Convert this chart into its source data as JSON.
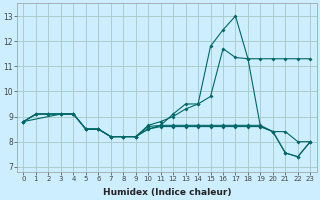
{
  "xlabel": "Humidex (Indice chaleur)",
  "background_color": "#cceeff",
  "grid_color": "#aacccc",
  "line_color": "#006666",
  "xlim": [
    -0.5,
    23.5
  ],
  "ylim": [
    6.8,
    13.5
  ],
  "yticks": [
    7,
    8,
    9,
    10,
    11,
    12,
    13
  ],
  "xticks": [
    0,
    1,
    2,
    3,
    4,
    5,
    6,
    7,
    8,
    9,
    10,
    11,
    12,
    13,
    14,
    15,
    16,
    17,
    18,
    19,
    20,
    21,
    22,
    23
  ],
  "series_list": [
    [
      [
        0,
        8.8
      ],
      [
        1,
        9.1
      ],
      [
        2,
        9.1
      ],
      [
        3,
        9.1
      ],
      [
        4,
        9.1
      ],
      [
        5,
        8.5
      ],
      [
        6,
        8.5
      ],
      [
        7,
        8.2
      ],
      [
        8,
        8.2
      ],
      [
        9,
        8.2
      ],
      [
        10,
        8.5
      ],
      [
        11,
        8.65
      ],
      [
        12,
        9.1
      ],
      [
        13,
        9.5
      ],
      [
        14,
        9.5
      ],
      [
        15,
        11.8
      ],
      [
        16,
        12.45
      ],
      [
        17,
        13.0
      ],
      [
        18,
        11.3
      ],
      [
        19,
        8.6
      ],
      [
        20,
        8.4
      ],
      [
        21,
        7.55
      ],
      [
        22,
        7.4
      ],
      [
        23,
        8.0
      ]
    ],
    [
      [
        0,
        8.8
      ],
      [
        1,
        9.1
      ],
      [
        2,
        9.1
      ],
      [
        3,
        9.1
      ],
      [
        4,
        9.1
      ],
      [
        5,
        8.5
      ],
      [
        6,
        8.5
      ],
      [
        7,
        8.2
      ],
      [
        8,
        8.2
      ],
      [
        9,
        8.2
      ],
      [
        10,
        8.65
      ],
      [
        11,
        8.8
      ],
      [
        12,
        9.0
      ],
      [
        13,
        9.3
      ],
      [
        14,
        9.5
      ],
      [
        15,
        9.8
      ],
      [
        16,
        11.7
      ],
      [
        17,
        11.35
      ],
      [
        18,
        11.3
      ],
      [
        19,
        11.3
      ],
      [
        20,
        11.3
      ],
      [
        21,
        11.3
      ],
      [
        22,
        11.3
      ],
      [
        23,
        11.3
      ]
    ],
    [
      [
        0,
        8.8
      ],
      [
        1,
        9.1
      ],
      [
        2,
        9.1
      ],
      [
        3,
        9.1
      ],
      [
        4,
        9.1
      ],
      [
        5,
        8.5
      ],
      [
        6,
        8.5
      ],
      [
        7,
        8.2
      ],
      [
        8,
        8.2
      ],
      [
        9,
        8.2
      ],
      [
        10,
        8.6
      ],
      [
        11,
        8.65
      ],
      [
        12,
        8.65
      ],
      [
        13,
        8.65
      ],
      [
        14,
        8.65
      ],
      [
        15,
        8.65
      ],
      [
        16,
        8.65
      ],
      [
        17,
        8.65
      ],
      [
        18,
        8.65
      ],
      [
        19,
        8.65
      ],
      [
        20,
        8.4
      ],
      [
        21,
        7.55
      ],
      [
        22,
        7.4
      ],
      [
        23,
        8.0
      ]
    ],
    [
      [
        0,
        8.8
      ],
      [
        3,
        9.1
      ],
      [
        4,
        9.1
      ],
      [
        5,
        8.5
      ],
      [
        6,
        8.5
      ],
      [
        7,
        8.2
      ],
      [
        8,
        8.2
      ],
      [
        9,
        8.2
      ],
      [
        10,
        8.5
      ],
      [
        11,
        8.6
      ],
      [
        12,
        8.6
      ],
      [
        13,
        8.6
      ],
      [
        14,
        8.6
      ],
      [
        15,
        8.6
      ],
      [
        16,
        8.6
      ],
      [
        17,
        8.6
      ],
      [
        18,
        8.6
      ],
      [
        19,
        8.6
      ],
      [
        20,
        8.4
      ],
      [
        21,
        8.4
      ],
      [
        22,
        8.0
      ],
      [
        23,
        8.0
      ]
    ]
  ]
}
